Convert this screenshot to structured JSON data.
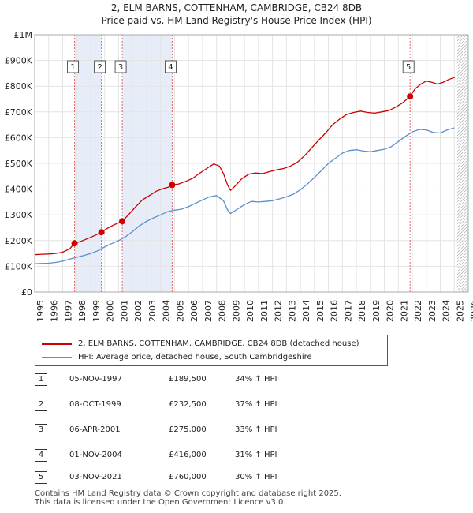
{
  "chart_data": {
    "type": "line",
    "title": "2, ELM BARNS, COTTENHAM, CAMBRIDGE, CB24 8DB",
    "subtitle": "Price paid vs. HM Land Registry's House Price Index (HPI)",
    "xlim": [
      1995,
      2026
    ],
    "ylim": [
      0,
      1000000
    ],
    "x_ticks": [
      "1995",
      "1996",
      "1997",
      "1998",
      "1999",
      "2000",
      "2001",
      "2002",
      "2003",
      "2004",
      "2005",
      "2006",
      "2007",
      "2008",
      "2009",
      "2010",
      "2011",
      "2012",
      "2013",
      "2014",
      "2015",
      "2016",
      "2017",
      "2018",
      "2019",
      "2020",
      "2021",
      "2022",
      "2023",
      "2024",
      "2025",
      "2026"
    ],
    "y_ticks": [
      {
        "value": 0,
        "label": "£0"
      },
      {
        "value": 100000,
        "label": "£100K"
      },
      {
        "value": 200000,
        "label": "£200K"
      },
      {
        "value": 300000,
        "label": "£300K"
      },
      {
        "value": 400000,
        "label": "£400K"
      },
      {
        "value": 500000,
        "label": "£500K"
      },
      {
        "value": 600000,
        "label": "£600K"
      },
      {
        "value": 700000,
        "label": "£700K"
      },
      {
        "value": 800000,
        "label": "£800K"
      },
      {
        "value": 900000,
        "label": "£900K"
      },
      {
        "value": 1000000,
        "label": "£1M"
      }
    ],
    "hatched_future_from": 2025.2,
    "series": [
      {
        "name": "2, ELM BARNS, COTTENHAM, CAMBRIDGE, CB24 8DB (detached house)",
        "color": "#cc0000",
        "points": [
          [
            1995.0,
            145000
          ],
          [
            1995.5,
            147000
          ],
          [
            1996.0,
            148000
          ],
          [
            1996.5,
            150000
          ],
          [
            1997.0,
            155000
          ],
          [
            1997.5,
            168000
          ],
          [
            1997.85,
            189500
          ],
          [
            1998.3,
            197000
          ],
          [
            1998.8,
            208000
          ],
          [
            1999.3,
            220000
          ],
          [
            1999.77,
            232500
          ],
          [
            2000.2,
            248000
          ],
          [
            2000.7,
            262000
          ],
          [
            2001.26,
            275000
          ],
          [
            2001.7,
            300000
          ],
          [
            2002.2,
            330000
          ],
          [
            2002.7,
            358000
          ],
          [
            2003.2,
            375000
          ],
          [
            2003.7,
            392000
          ],
          [
            2004.2,
            402000
          ],
          [
            2004.6,
            408000
          ],
          [
            2004.83,
            416000
          ],
          [
            2005.3,
            420000
          ],
          [
            2005.8,
            430000
          ],
          [
            2006.3,
            442000
          ],
          [
            2006.8,
            462000
          ],
          [
            2007.3,
            480000
          ],
          [
            2007.8,
            498000
          ],
          [
            2008.2,
            490000
          ],
          [
            2008.5,
            460000
          ],
          [
            2008.8,
            415000
          ],
          [
            2009.0,
            395000
          ],
          [
            2009.3,
            410000
          ],
          [
            2009.8,
            440000
          ],
          [
            2010.3,
            458000
          ],
          [
            2010.8,
            463000
          ],
          [
            2011.3,
            460000
          ],
          [
            2011.8,
            468000
          ],
          [
            2012.3,
            475000
          ],
          [
            2012.8,
            480000
          ],
          [
            2013.3,
            490000
          ],
          [
            2013.8,
            505000
          ],
          [
            2014.3,
            530000
          ],
          [
            2014.8,
            560000
          ],
          [
            2015.3,
            590000
          ],
          [
            2015.8,
            618000
          ],
          [
            2016.3,
            650000
          ],
          [
            2016.8,
            672000
          ],
          [
            2017.3,
            690000
          ],
          [
            2017.8,
            698000
          ],
          [
            2018.3,
            703000
          ],
          [
            2018.8,
            698000
          ],
          [
            2019.3,
            695000
          ],
          [
            2019.8,
            700000
          ],
          [
            2020.3,
            705000
          ],
          [
            2020.8,
            718000
          ],
          [
            2021.3,
            735000
          ],
          [
            2021.84,
            760000
          ],
          [
            2022.2,
            790000
          ],
          [
            2022.6,
            808000
          ],
          [
            2023.0,
            820000
          ],
          [
            2023.4,
            815000
          ],
          [
            2023.8,
            808000
          ],
          [
            2024.2,
            815000
          ],
          [
            2024.6,
            826000
          ],
          [
            2024.9,
            832000
          ],
          [
            2025.05,
            835000
          ]
        ]
      },
      {
        "name": "HPI: Average price, detached house, South Cambridgeshire",
        "color": "#5b8fd0",
        "points": [
          [
            1995.0,
            110000
          ],
          [
            1995.5,
            111000
          ],
          [
            1996.0,
            112000
          ],
          [
            1996.5,
            115000
          ],
          [
            1997.0,
            120000
          ],
          [
            1997.5,
            128000
          ],
          [
            1998.0,
            135000
          ],
          [
            1998.5,
            142000
          ],
          [
            1999.0,
            150000
          ],
          [
            1999.5,
            160000
          ],
          [
            2000.0,
            175000
          ],
          [
            2000.5,
            188000
          ],
          [
            2001.0,
            200000
          ],
          [
            2001.5,
            215000
          ],
          [
            2002.0,
            235000
          ],
          [
            2002.5,
            258000
          ],
          [
            2003.0,
            275000
          ],
          [
            2003.5,
            288000
          ],
          [
            2004.0,
            300000
          ],
          [
            2004.5,
            312000
          ],
          [
            2005.0,
            318000
          ],
          [
            2005.5,
            322000
          ],
          [
            2006.0,
            332000
          ],
          [
            2006.5,
            345000
          ],
          [
            2007.0,
            358000
          ],
          [
            2007.5,
            370000
          ],
          [
            2008.0,
            375000
          ],
          [
            2008.5,
            355000
          ],
          [
            2008.8,
            318000
          ],
          [
            2009.0,
            305000
          ],
          [
            2009.5,
            322000
          ],
          [
            2010.0,
            340000
          ],
          [
            2010.5,
            352000
          ],
          [
            2011.0,
            350000
          ],
          [
            2011.5,
            352000
          ],
          [
            2012.0,
            355000
          ],
          [
            2012.5,
            362000
          ],
          [
            2013.0,
            370000
          ],
          [
            2013.5,
            380000
          ],
          [
            2014.0,
            398000
          ],
          [
            2014.5,
            420000
          ],
          [
            2015.0,
            445000
          ],
          [
            2015.5,
            472000
          ],
          [
            2016.0,
            500000
          ],
          [
            2016.5,
            520000
          ],
          [
            2017.0,
            540000
          ],
          [
            2017.5,
            550000
          ],
          [
            2018.0,
            553000
          ],
          [
            2018.5,
            548000
          ],
          [
            2019.0,
            545000
          ],
          [
            2019.5,
            550000
          ],
          [
            2020.0,
            555000
          ],
          [
            2020.5,
            565000
          ],
          [
            2021.0,
            585000
          ],
          [
            2021.5,
            605000
          ],
          [
            2022.0,
            622000
          ],
          [
            2022.5,
            632000
          ],
          [
            2023.0,
            630000
          ],
          [
            2023.5,
            620000
          ],
          [
            2024.0,
            618000
          ],
          [
            2024.5,
            630000
          ],
          [
            2025.0,
            638000
          ]
        ]
      }
    ],
    "sales": [
      {
        "id": "1",
        "x": 1997.85,
        "price": 189500
      },
      {
        "id": "2",
        "x": 1999.77,
        "price": 232500
      },
      {
        "id": "3",
        "x": 2001.26,
        "price": 275000
      },
      {
        "id": "4",
        "x": 2004.83,
        "price": 416000
      },
      {
        "id": "5",
        "x": 2021.84,
        "price": 760000
      }
    ],
    "shaded_periods": [
      [
        1997.85,
        1999.77
      ],
      [
        2001.26,
        2004.83
      ]
    ]
  },
  "legend": {
    "property_label": "2, ELM BARNS, COTTENHAM, CAMBRIDGE, CB24 8DB (detached house)",
    "hpi_label": "HPI: Average price, detached house, South Cambridgeshire",
    "property_color": "#cc0000",
    "hpi_color": "#5b8fd0"
  },
  "sales_table": [
    {
      "id": "1",
      "date": "05-NOV-1997",
      "price": "£189,500",
      "hpi": "34% ↑ HPI"
    },
    {
      "id": "2",
      "date": "08-OCT-1999",
      "price": "£232,500",
      "hpi": "37% ↑ HPI"
    },
    {
      "id": "3",
      "date": "06-APR-2001",
      "price": "£275,000",
      "hpi": "33% ↑ HPI"
    },
    {
      "id": "4",
      "date": "01-NOV-2004",
      "price": "£416,000",
      "hpi": "31% ↑ HPI"
    },
    {
      "id": "5",
      "date": "03-NOV-2021",
      "price": "£760,000",
      "hpi": "30% ↑ HPI"
    }
  ],
  "footer": {
    "line1": "Contains HM Land Registry data © Crown copyright and database right 2025.",
    "line2": "This data is licensed under the Open Government Licence v3.0."
  }
}
